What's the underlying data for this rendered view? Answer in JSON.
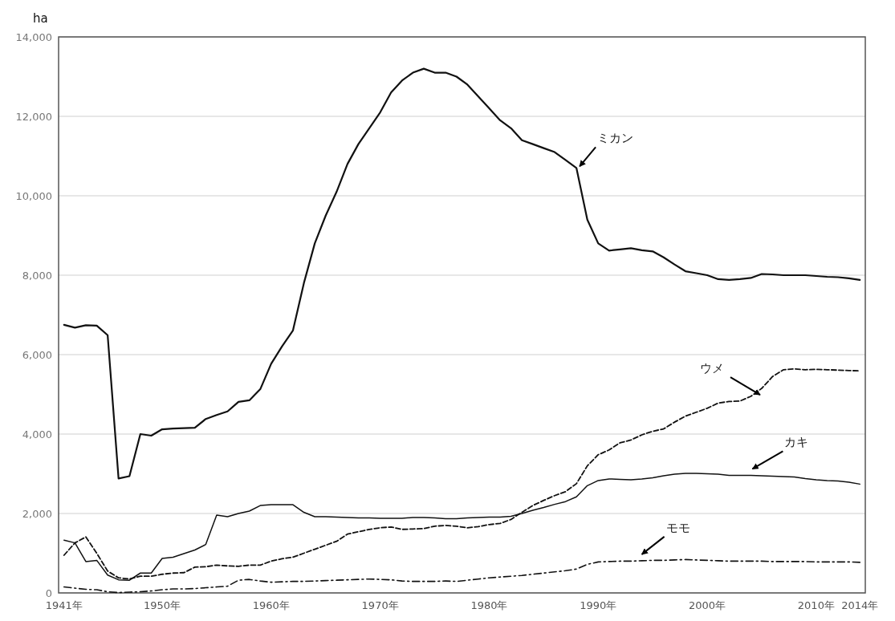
{
  "chart_data": {
    "type": "line",
    "ylabel": "ha",
    "x": [
      1941,
      1942,
      1943,
      1944,
      1945,
      1946,
      1947,
      1948,
      1949,
      1950,
      1951,
      1952,
      1953,
      1954,
      1955,
      1956,
      1957,
      1958,
      1959,
      1960,
      1961,
      1962,
      1963,
      1964,
      1965,
      1966,
      1967,
      1968,
      1969,
      1970,
      1971,
      1972,
      1973,
      1974,
      1975,
      1976,
      1977,
      1978,
      1979,
      1980,
      1981,
      1982,
      1983,
      1984,
      1985,
      1986,
      1987,
      1988,
      1989,
      1990,
      1991,
      1992,
      1993,
      1994,
      1995,
      1996,
      1997,
      1998,
      1999,
      2000,
      2001,
      2002,
      2003,
      2004,
      2005,
      2006,
      2007,
      2008,
      2009,
      2010,
      2011,
      2012,
      2013,
      2014
    ],
    "xlim": [
      1940.5,
      2014.5
    ],
    "xticks": [
      {
        "value": 1941,
        "label": "1941年"
      },
      {
        "value": 1950,
        "label": "1950年"
      },
      {
        "value": 1960,
        "label": "1960年"
      },
      {
        "value": 1970,
        "label": "1970年"
      },
      {
        "value": 1980,
        "label": "1980年"
      },
      {
        "value": 1990,
        "label": "1990年"
      },
      {
        "value": 2000,
        "label": "2000年"
      },
      {
        "value": 2010,
        "label": "2010年"
      },
      {
        "value": 2014,
        "label": "2014年"
      }
    ],
    "ylim": [
      0,
      14000
    ],
    "yticks": [
      {
        "value": 0,
        "label": "0"
      },
      {
        "value": 2000,
        "label": "2,000"
      },
      {
        "value": 4000,
        "label": "4,000"
      },
      {
        "value": 6000,
        "label": "6,000"
      },
      {
        "value": 8000,
        "label": "8,000"
      },
      {
        "value": 10000,
        "label": "10,000"
      },
      {
        "value": 12000,
        "label": "12,000"
      },
      {
        "value": 14000,
        "label": "14,000"
      }
    ],
    "grid": "y",
    "marker": "none",
    "series": [
      {
        "name": "ミカン",
        "color": "#111111",
        "line_style": "solid",
        "values": [
          6750,
          6680,
          6740,
          6730,
          6490,
          2880,
          2940,
          4000,
          3960,
          4120,
          4140,
          4150,
          4160,
          4380,
          4480,
          4570,
          4810,
          4850,
          5130,
          5770,
          6210,
          6610,
          7800,
          8800,
          9500,
          10100,
          10800,
          11300,
          11700,
          12100,
          12600,
          12900,
          13100,
          13200,
          13100,
          13100,
          13000,
          12800,
          12500,
          12200,
          11900,
          11700,
          11400,
          11300,
          11200,
          11100,
          10900,
          10700,
          9400,
          8800,
          8620,
          8650,
          8680,
          8630,
          8600,
          8450,
          8270,
          8100,
          8050,
          8000,
          7900,
          7880,
          7900,
          7930,
          8030,
          8020,
          8000,
          8000,
          8000,
          7980,
          7960,
          7950,
          7920,
          7880
        ]
      },
      {
        "name": "ウメ",
        "color": "#111111",
        "line_style": "dashed",
        "values": [
          950,
          1260,
          1410,
          1000,
          550,
          380,
          350,
          420,
          420,
          470,
          500,
          510,
          650,
          660,
          700,
          680,
          670,
          700,
          700,
          800,
          860,
          900,
          1000,
          1100,
          1200,
          1300,
          1480,
          1540,
          1600,
          1640,
          1660,
          1600,
          1610,
          1620,
          1680,
          1700,
          1680,
          1640,
          1670,
          1720,
          1750,
          1850,
          2030,
          2200,
          2330,
          2450,
          2550,
          2750,
          3200,
          3480,
          3600,
          3780,
          3850,
          3980,
          4070,
          4130,
          4300,
          4450,
          4550,
          4650,
          4780,
          4820,
          4830,
          4950,
          5150,
          5450,
          5620,
          5640,
          5620,
          5630,
          5620,
          5610,
          5600,
          5590
        ]
      },
      {
        "name": "カキ",
        "color": "#111111",
        "line_style": "solid",
        "values": [
          1330,
          1260,
          790,
          820,
          450,
          330,
          320,
          500,
          500,
          870,
          900,
          990,
          1080,
          1220,
          1960,
          1920,
          2000,
          2060,
          2200,
          2220,
          2220,
          2220,
          2030,
          1920,
          1920,
          1910,
          1900,
          1890,
          1890,
          1880,
          1880,
          1880,
          1900,
          1900,
          1890,
          1870,
          1870,
          1890,
          1900,
          1910,
          1910,
          1930,
          2000,
          2080,
          2150,
          2230,
          2300,
          2420,
          2700,
          2830,
          2870,
          2860,
          2850,
          2870,
          2900,
          2950,
          2990,
          3010,
          3010,
          3000,
          2990,
          2960,
          2960,
          2960,
          2950,
          2940,
          2930,
          2920,
          2880,
          2850,
          2830,
          2820,
          2790,
          2740
        ]
      },
      {
        "name": "モモ",
        "color": "#111111",
        "line_style": "dashdot",
        "values": [
          150,
          120,
          90,
          80,
          30,
          10,
          20,
          30,
          50,
          80,
          100,
          100,
          110,
          130,
          150,
          170,
          320,
          340,
          300,
          270,
          280,
          290,
          290,
          300,
          310,
          320,
          330,
          340,
          350,
          340,
          330,
          300,
          290,
          290,
          290,
          300,
          290,
          320,
          350,
          380,
          400,
          420,
          440,
          470,
          500,
          530,
          560,
          600,
          720,
          780,
          790,
          800,
          800,
          810,
          820,
          820,
          830,
          840,
          830,
          820,
          810,
          800,
          800,
          800,
          800,
          790,
          790,
          790,
          790,
          780,
          780,
          780,
          780,
          770
        ]
      }
    ]
  }
}
